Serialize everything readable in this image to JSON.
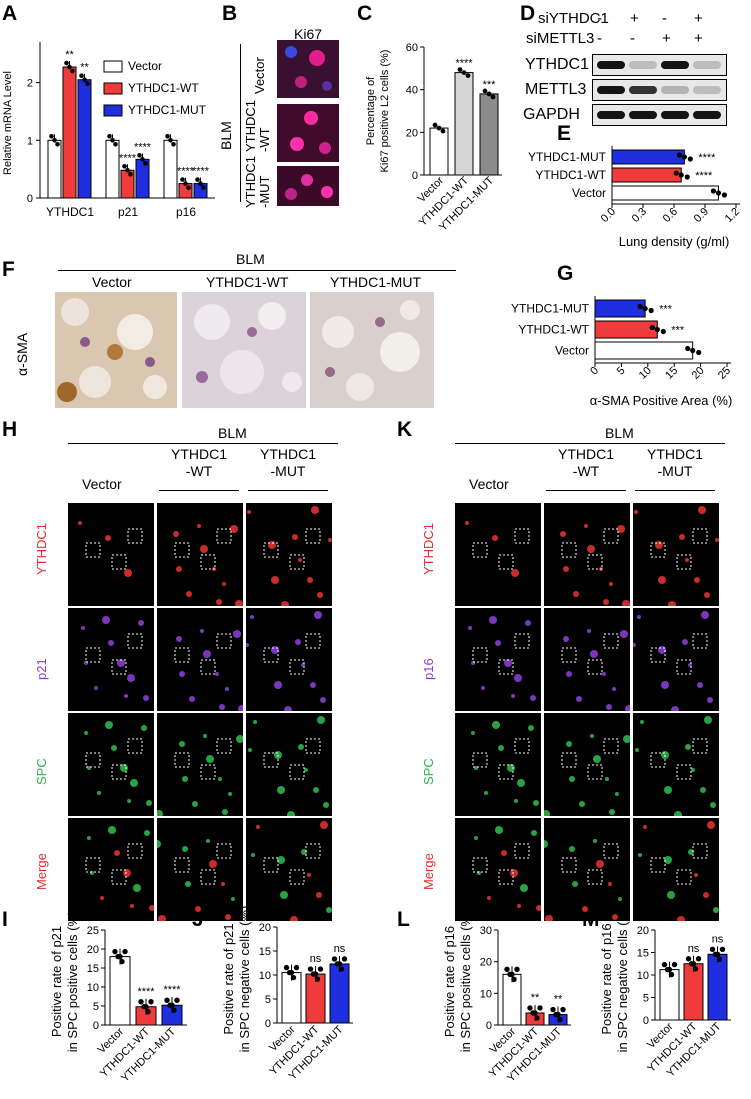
{
  "panels": {
    "A": "A",
    "B": "B",
    "C": "C",
    "D": "D",
    "E": "E",
    "F": "F",
    "G": "G",
    "H": "H",
    "K": "K",
    "I": "I",
    "J": "J",
    "L": "L",
    "M": "M"
  },
  "colors": {
    "white": "#ffffff",
    "red": "#ef3b3b",
    "blue": "#1f2fe0",
    "lightgray": "#d6d6d6",
    "gray": "#8c8c8c",
    "ythdc1_red": "#e03030",
    "p21_purple": "#8a3cd0",
    "spc_green": "#2fb34a"
  },
  "chart_data": [
    {
      "id": "A",
      "type": "bar",
      "ylabel": "Relative mRNA Level",
      "categories": [
        "YTHDC1",
        "p21",
        "p16"
      ],
      "yticks": [
        "0",
        "1",
        "2"
      ],
      "ylim": [
        0,
        2.6
      ],
      "series": [
        {
          "name": "Vector",
          "values": [
            1.0,
            1.0,
            1.0
          ],
          "sig": [
            "",
            "",
            ""
          ]
        },
        {
          "name": "YTHDC1-WT",
          "values": [
            2.27,
            0.48,
            0.25
          ],
          "sig": [
            "**",
            "****",
            "****"
          ]
        },
        {
          "name": "YTHDC1-MUT",
          "values": [
            2.05,
            0.67,
            0.25
          ],
          "sig": [
            "**",
            "****",
            "****"
          ]
        }
      ]
    },
    {
      "id": "C",
      "type": "bar",
      "ylabel": "Percentage of Ki67 positive L2 cells (%)",
      "ylabel_lines": [
        "Percentage of",
        "Ki67 positive L2 cells  (%)"
      ],
      "categories": [
        "Vector",
        "YTHDC1-WT",
        "YTHDC1-MUT"
      ],
      "yticks": [
        "0",
        "20",
        "40",
        "60"
      ],
      "ylim": [
        0,
        60
      ],
      "values": [
        22,
        48,
        38
      ],
      "sig": [
        "",
        "****",
        "***"
      ]
    },
    {
      "id": "E",
      "type": "bar",
      "orientation": "horizontal",
      "xlabel": "Lung density (g/ml)",
      "categories": [
        "YTHDC1-MUT",
        "YTHDC1-WT",
        "Vector"
      ],
      "xticks": [
        "0.0",
        "0.3",
        "0.6",
        "0.9",
        "1.2"
      ],
      "xlim": [
        0,
        1.2
      ],
      "values": [
        0.7,
        0.67,
        1.03
      ],
      "sig": [
        "****",
        "****",
        ""
      ]
    },
    {
      "id": "G",
      "type": "bar",
      "orientation": "horizontal",
      "xlabel": "α-SMA Positive Area (%)",
      "categories": [
        "YTHDC1-MUT",
        "YTHDC1-WT",
        "Vector"
      ],
      "xticks": [
        "0",
        "5",
        "10",
        "15",
        "20",
        "25"
      ],
      "xlim": [
        0,
        25
      ],
      "values": [
        9.5,
        11.8,
        18.5
      ],
      "sig": [
        "***",
        "***",
        ""
      ]
    },
    {
      "id": "I",
      "type": "bar",
      "ylabel_lines": [
        "Positive rate of p21",
        "in SPC positive cells (%)"
      ],
      "categories": [
        "Vector",
        "YTHDC1-WT",
        "YTHDC1-MUT"
      ],
      "yticks": [
        "0",
        "5",
        "10",
        "15",
        "20",
        "25"
      ],
      "ylim": [
        0,
        25
      ],
      "values": [
        18,
        4.8,
        5.2
      ],
      "sig": [
        "",
        "****",
        "****"
      ]
    },
    {
      "id": "J",
      "type": "bar",
      "ylabel_lines": [
        "Positive rate of p21",
        "in SPC negative cells (%)"
      ],
      "categories": [
        "Vector",
        "YTHDC1-WT",
        "YTHDC1-MUT"
      ],
      "yticks": [
        "0",
        "5",
        "10",
        "15",
        "20"
      ],
      "ylim": [
        0,
        20
      ],
      "values": [
        10.5,
        10.2,
        12.3
      ],
      "sig": [
        "",
        "ns",
        "ns"
      ]
    },
    {
      "id": "L",
      "type": "bar",
      "ylabel_lines": [
        "Positive rate of p16",
        "in SPC positive cells (%)"
      ],
      "categories": [
        "Vector",
        "YTHDC1-WT",
        "YTHDC1-MUT"
      ],
      "yticks": [
        "0",
        "10",
        "20",
        "30"
      ],
      "ylim": [
        0,
        30
      ],
      "values": [
        16,
        3.8,
        3.3
      ],
      "sig": [
        "",
        "**",
        "**"
      ]
    },
    {
      "id": "M",
      "type": "bar",
      "ylabel_lines": [
        "Positive rate of p16",
        "in SPC negative cells (%)"
      ],
      "categories": [
        "Vector",
        "YTHDC1-WT",
        "YTHDC1-MUT"
      ],
      "yticks": [
        "0",
        "5",
        "10",
        "15",
        "20"
      ],
      "ylim": [
        0,
        20
      ],
      "values": [
        11.2,
        12.5,
        14.6
      ],
      "sig": [
        "",
        "ns",
        "ns"
      ]
    }
  ],
  "panelB": {
    "stain": "Ki67",
    "group": "BLM",
    "rows": [
      "Vector",
      "YTHDC1\n-WT",
      "YTHDC1\n-MUT"
    ]
  },
  "panelD": {
    "rows": [
      {
        "label": "siYTHDC1",
        "vals": [
          "-",
          "+",
          "-",
          "+"
        ]
      },
      {
        "label": "siMETTL3",
        "vals": [
          "-",
          "-",
          "+",
          "+"
        ]
      }
    ],
    "bands": [
      "YTHDC1",
      "METTL3",
      "GAPDH"
    ]
  },
  "panelF": {
    "group": "BLM",
    "stain": "α-SMA",
    "cols": [
      "Vector",
      "YTHDC1-WT",
      "YTHDC1-MUT"
    ]
  },
  "panelH": {
    "group": "BLM",
    "cols": [
      "Vector",
      "YTHDC1\n-WT",
      "YTHDC1\n-MUT"
    ],
    "rows": [
      "YTHDC1",
      "p21",
      "SPC",
      "Merge"
    ]
  },
  "panelK": {
    "group": "BLM",
    "cols": [
      "Vector",
      "YTHDC1\n-WT",
      "YTHDC1\n-MUT"
    ],
    "rows": [
      "YTHDC1",
      "p16",
      "SPC",
      "Merge"
    ]
  }
}
